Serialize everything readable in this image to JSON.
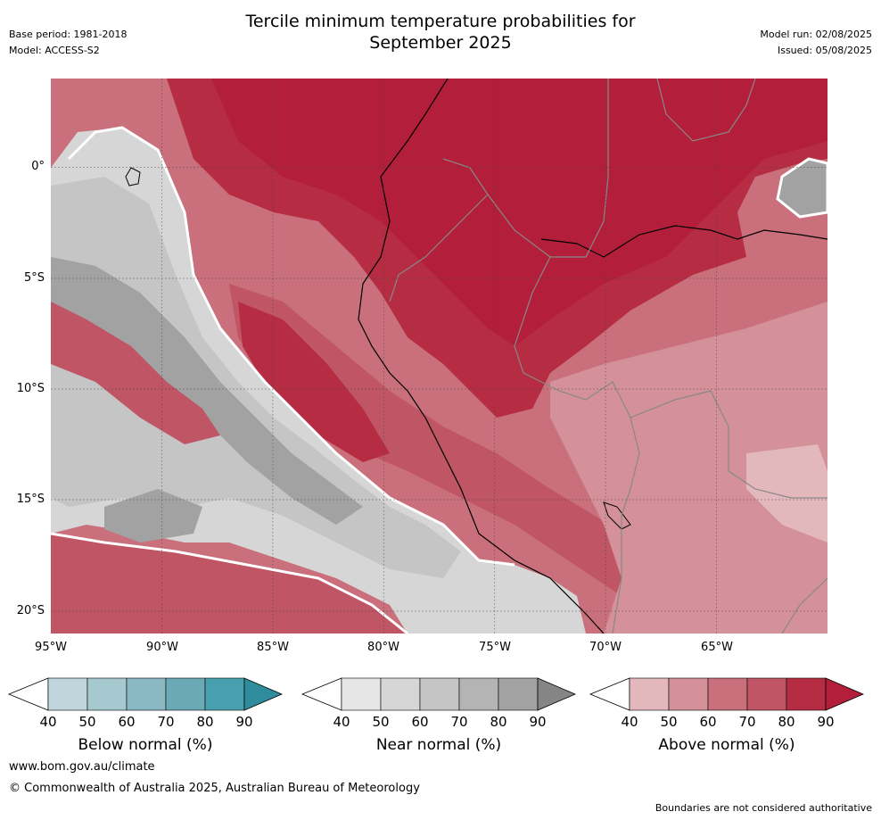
{
  "header": {
    "title_line1": "Tercile minimum temperature probabilities for",
    "title_line2": "September 2025",
    "base_period": "Base period: 1981-2018",
    "model": "Model: ACCESS-S2",
    "model_run": "Model run: 02/08/2025",
    "issued": "Issued: 05/08/2025"
  },
  "map": {
    "lat_labels": [
      "0°",
      "5°S",
      "10°S",
      "15°S",
      "20°S"
    ],
    "lon_labels": [
      "95°W",
      "90°W",
      "85°W",
      "80°W",
      "75°W",
      "70°W",
      "65°W"
    ],
    "lat_extent": [
      4,
      -21
    ],
    "lon_extent": [
      -95,
      -60
    ]
  },
  "legends": [
    {
      "title": "Below normal (%)",
      "ticks": [
        "40",
        "50",
        "60",
        "70",
        "80",
        "90"
      ],
      "colors": [
        "#bfd6dc",
        "#a6c9d0",
        "#8bb9c3",
        "#6aa9b5",
        "#48a0ae",
        "#2e8c9d"
      ]
    },
    {
      "title": "Near normal (%)",
      "ticks": [
        "40",
        "50",
        "60",
        "70",
        "80",
        "90"
      ],
      "colors": [
        "#e6e6e6",
        "#d6d6d6",
        "#c5c5c5",
        "#b4b4b4",
        "#a2a2a2",
        "#858585"
      ]
    },
    {
      "title": "Above normal (%)",
      "ticks": [
        "40",
        "50",
        "60",
        "70",
        "80",
        "90"
      ],
      "colors": [
        "#e2b8bd",
        "#d4919a",
        "#c9707c",
        "#c05565",
        "#b62d43",
        "#b31e3a"
      ]
    }
  ],
  "footer": {
    "url": "www.bom.gov.au/climate",
    "copyright": "© Commonwealth of Australia 2025, Australian Bureau of Meteorology",
    "disclaimer": "Boundaries are not considered authoritative"
  }
}
